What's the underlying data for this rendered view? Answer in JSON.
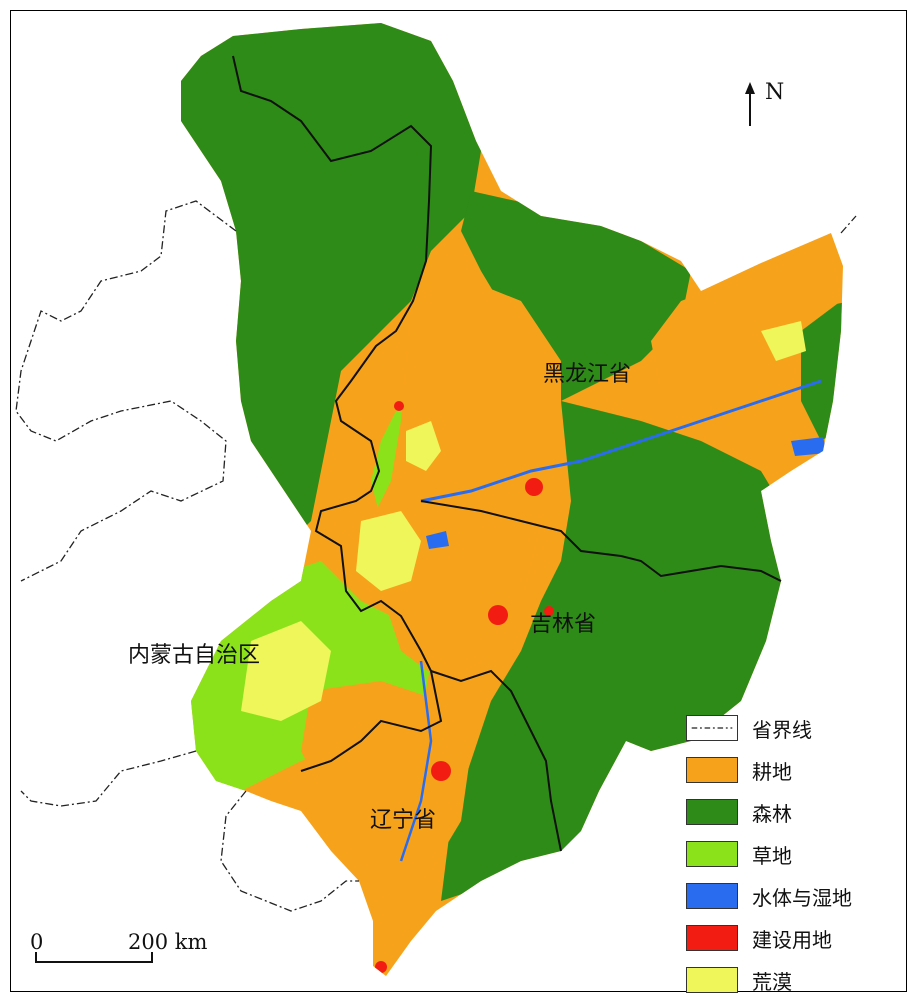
{
  "legend": {
    "boundary_label": "省界线",
    "items": [
      {
        "label": "耕地",
        "color": "#f7a21b"
      },
      {
        "label": "森林",
        "color": "#2e8b17"
      },
      {
        "label": "草地",
        "color": "#8be21a"
      },
      {
        "label": "水体与湿地",
        "color": "#2a6cf0"
      },
      {
        "label": "建设用地",
        "color": "#f21c12"
      },
      {
        "label": "荒漠",
        "color": "#eef65a"
      }
    ]
  },
  "region_labels": {
    "heilongjiang": "黑龙江省",
    "jilin": "吉林省",
    "liaoning": "辽宁省",
    "inner_mongolia": "内蒙古自治区"
  },
  "north_arrow": {
    "letter": "N",
    "icon": "north-arrow-icon"
  },
  "scale_bar": {
    "start": "0",
    "end": "200 km"
  }
}
